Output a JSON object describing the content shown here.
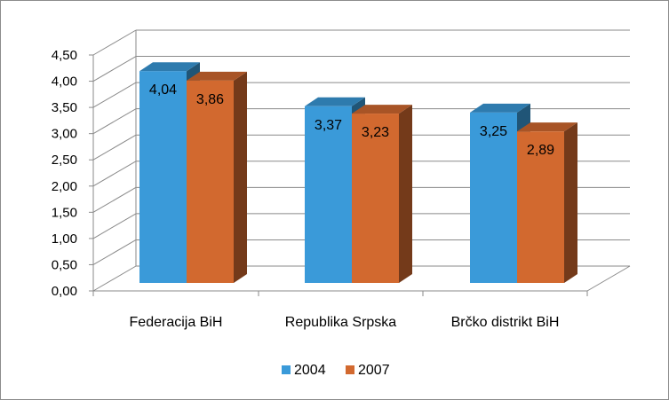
{
  "chart_data": {
    "type": "bar",
    "style": "3d-clustered-column",
    "categories": [
      "Federacija BiH",
      "Republika Srpska",
      "Brčko distrikt BiH"
    ],
    "series": [
      {
        "name": "2004",
        "values": [
          4.04,
          3.37,
          3.25
        ],
        "color": "#3a9ad9",
        "value_labels": [
          "4,04",
          "3,37",
          "3,25"
        ]
      },
      {
        "name": "2007",
        "values": [
          3.86,
          3.23,
          2.89
        ],
        "color": "#d2692f",
        "value_labels": [
          "3,86",
          "3,23",
          "2,89"
        ]
      }
    ],
    "y_ticks": [
      "0,00",
      "0,50",
      "1,00",
      "1,50",
      "2,00",
      "2,50",
      "3,00",
      "3,50",
      "4,00",
      "4,50"
    ],
    "ylim": [
      0,
      4.5
    ],
    "grid": true,
    "legend": "bottom"
  }
}
